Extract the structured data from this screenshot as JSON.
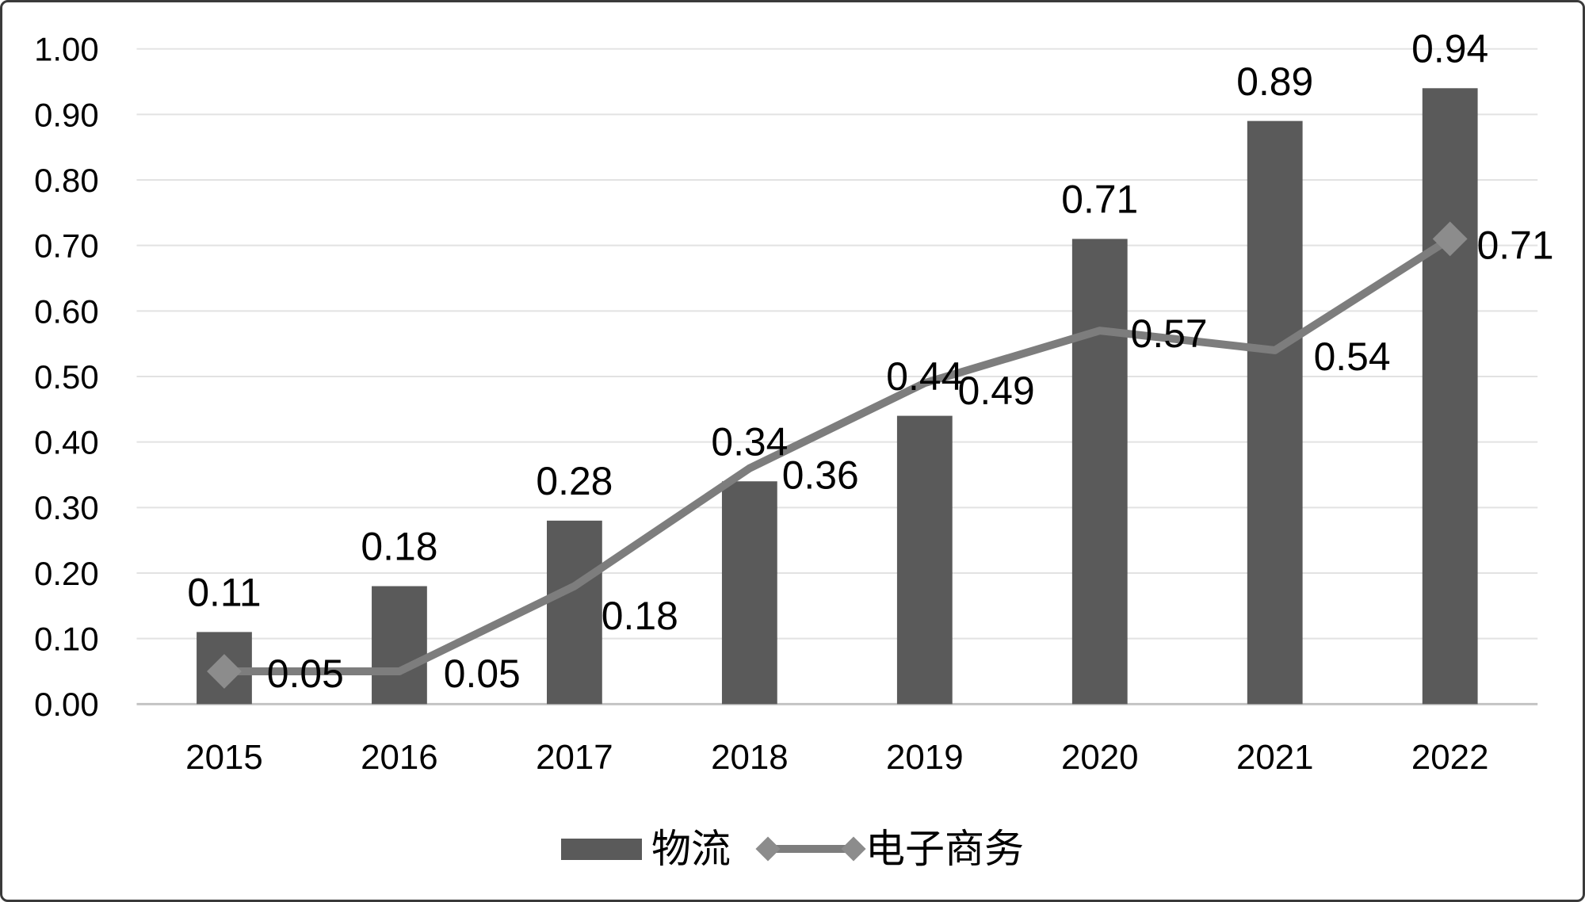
{
  "chart_data": {
    "type": "combo-bar-line",
    "title": "",
    "categories": [
      "2015",
      "2016",
      "2017",
      "2018",
      "2019",
      "2020",
      "2021",
      "2022"
    ],
    "series": [
      {
        "name": "物流",
        "type": "bar",
        "values": [
          0.11,
          0.18,
          0.28,
          0.34,
          0.44,
          0.71,
          0.89,
          0.94
        ],
        "labels": [
          "0.11",
          "0.18",
          "0.28",
          "0.34",
          "0.44",
          "0.71",
          "0.89",
          "0.94"
        ],
        "color": "#5a5a5a"
      },
      {
        "name": "电子商务",
        "type": "line",
        "values": [
          0.05,
          0.05,
          0.18,
          0.36,
          0.49,
          0.57,
          0.54,
          0.71
        ],
        "labels": [
          "0.05",
          "0.05",
          "0.18",
          "0.36",
          "0.49",
          "0.57",
          "0.54",
          "0.71"
        ],
        "color": "#7d7d7d",
        "marker": "diamond",
        "marker_color": "#8c8c8c",
        "markers_at": [
          "first",
          "last"
        ]
      }
    ],
    "xlabel": "",
    "ylabel": "",
    "ylim": [
      0,
      1
    ],
    "ytick_step": 0.1,
    "y_ticks": [
      "0.00",
      "0.10",
      "0.20",
      "0.30",
      "0.40",
      "0.50",
      "0.60",
      "0.70",
      "0.80",
      "0.90",
      "1.00"
    ],
    "grid": "horizontal",
    "legend_position": "bottom"
  },
  "legend": {
    "items": [
      {
        "label": "物流",
        "swatch": "bar"
      },
      {
        "label": "电子商务",
        "swatch": "line-diamond"
      }
    ]
  },
  "colors": {
    "bar": "#5a5a5a",
    "line": "#7d7d7d",
    "marker": "#8c8c8c",
    "grid": "#e2e2e2",
    "axis": "#c2c2c2",
    "text": "#000000",
    "border": "#3a3a3a",
    "background": "#ffffff"
  }
}
